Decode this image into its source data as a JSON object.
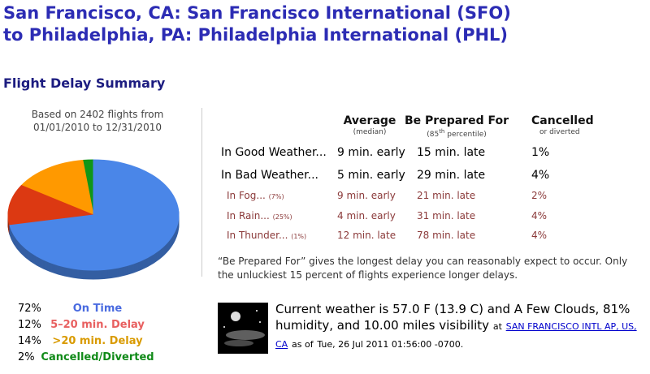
{
  "header": {
    "title_line1": "San Francisco, CA: San Francisco International (SFO)",
    "title_line2": "to Philadelphia, PA: Philadelphia International (PHL)"
  },
  "section_title": "Flight Delay Summary",
  "chart_data": {
    "type": "pie",
    "subtitle_line1": "Based on 2402 flights from",
    "subtitle_line2": "01/01/2010 to 12/31/2010",
    "categories": [
      "On Time",
      "5–20 min. Delay",
      ">20 min. Delay",
      "Cancelled/Diverted"
    ],
    "values": [
      72,
      12,
      14,
      2
    ],
    "value_labels": [
      "72%",
      "12%",
      "14%",
      "2%"
    ],
    "colors": [
      "#4a86e8",
      "#dc3912",
      "#ff9900",
      "#109618"
    ],
    "label_colors": [
      "#4a6be0",
      "#e86060",
      "#d99a00",
      "#108a18"
    ]
  },
  "table": {
    "headers": [
      {
        "title": "Average",
        "sub": "(median)"
      },
      {
        "title": "Be Prepared For",
        "sub_pre": "(85",
        "sub_sup": "th",
        "sub_post": "percentile)"
      },
      {
        "title": "Cancelled",
        "sub": "or diverted"
      }
    ],
    "rows": [
      {
        "label": "In Good Weather...",
        "share": null,
        "average": "9 min. early",
        "prepared": "15 min. late",
        "cancelled": "1%"
      },
      {
        "label": "In Bad Weather...",
        "share": null,
        "average": "5 min. early",
        "prepared": "29 min. late",
        "cancelled": "4%"
      },
      {
        "label": "In Fog...",
        "share": "(7%)",
        "average": "9 min. early",
        "prepared": "21 min. late",
        "cancelled": "2%"
      },
      {
        "label": "In Rain...",
        "share": "(25%)",
        "average": "4 min. early",
        "prepared": "31 min. late",
        "cancelled": "4%"
      },
      {
        "label": "In Thunder...",
        "share": "(1%)",
        "average": "12 min. late",
        "prepared": "78 min. late",
        "cancelled": "4%"
      }
    ]
  },
  "note": "“Be Prepared For” gives the longest delay you can reasonably expect to occur. Only the unluckiest 15 percent of flights experience longer delays.",
  "weather": {
    "text": "Current weather is 57.0 F (13.9 C) and A Few Clouds, 81% humidity, and 10.00 miles visibility",
    "at": "at",
    "station": "SAN FRANCISCO INTL AP, US, CA",
    "as_of": "as of",
    "time": "Tue, 26 Jul 2011 01:56:00 -0700",
    "end": "."
  }
}
